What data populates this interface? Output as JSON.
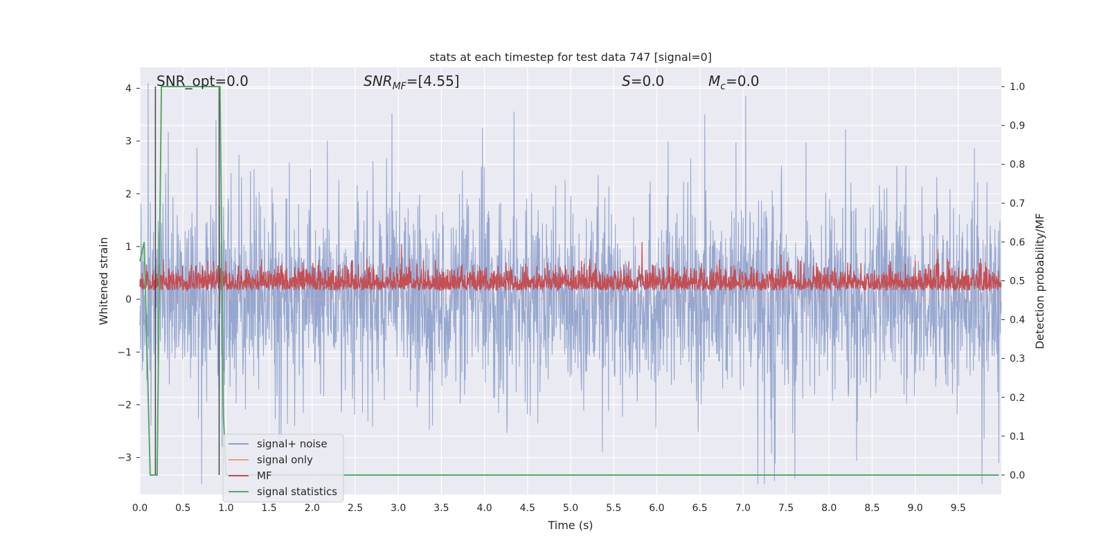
{
  "chart_data": {
    "type": "line",
    "title": "stats at each timestep for test data 747 [signal=0]",
    "xlabel": "Time (s)",
    "ylabel_left": "Whitened strain",
    "ylabel_right": "Detection probability/MF",
    "xlim": [
      0.0,
      10.0
    ],
    "ylim_left": [
      -3.7,
      4.4
    ],
    "ylim_right": [
      -0.05,
      1.05
    ],
    "x_ticks": [
      "0.0",
      "0.5",
      "1.0",
      "1.5",
      "2.0",
      "2.5",
      "3.0",
      "3.5",
      "4.0",
      "4.5",
      "5.0",
      "5.5",
      "6.0",
      "6.5",
      "7.0",
      "7.5",
      "8.0",
      "8.5",
      "9.0",
      "9.5"
    ],
    "y_ticks_left": [
      "4",
      "3",
      "2",
      "1",
      "0",
      "−1",
      "−2",
      "−3"
    ],
    "y_ticks_right": [
      "1.0",
      "0.9",
      "0.8",
      "0.7",
      "0.6",
      "0.5",
      "0.4",
      "0.3",
      "0.2",
      "0.1",
      "0.0"
    ],
    "annotations": {
      "snr_opt": "SNR_opt=0.0",
      "snr_mf_name": "SNR",
      "snr_mf_sub": "MF",
      "snr_mf_value": "=[4.55]",
      "s_name": "S",
      "s_value": "=0.0",
      "mc_name": "M",
      "mc_sub": "c",
      "mc_value": "=0.0"
    },
    "grid": true,
    "legend_position": "lower-left",
    "series": [
      {
        "name": "signal+ noise",
        "axis": "left",
        "color": "#8da0cb",
        "description_stats": {
          "approx_min": -3.5,
          "approx_max": 4.1
        }
      },
      {
        "name": "signal only",
        "axis": "left",
        "color": "#e8a07e",
        "x": [
          0.0,
          10.0
        ],
        "y": [
          0.0,
          0.0
        ]
      },
      {
        "name": "MF",
        "axis": "right",
        "color": "#c44e52",
        "description_stats": {
          "approx_min": 0.45,
          "approx_max": 0.6
        }
      },
      {
        "name": "signal statistics",
        "axis": "right",
        "color": "#55a868",
        "x": [
          0.0,
          0.05,
          0.12,
          0.17,
          0.2,
          0.25,
          0.93,
          0.97,
          1.0,
          9.97
        ],
        "y": [
          0.55,
          0.6,
          0.0,
          0.0,
          0.0,
          1.0,
          1.0,
          0.15,
          0.0,
          0.0
        ]
      }
    ],
    "vertical_markers": [
      0.18,
      0.92
    ]
  }
}
